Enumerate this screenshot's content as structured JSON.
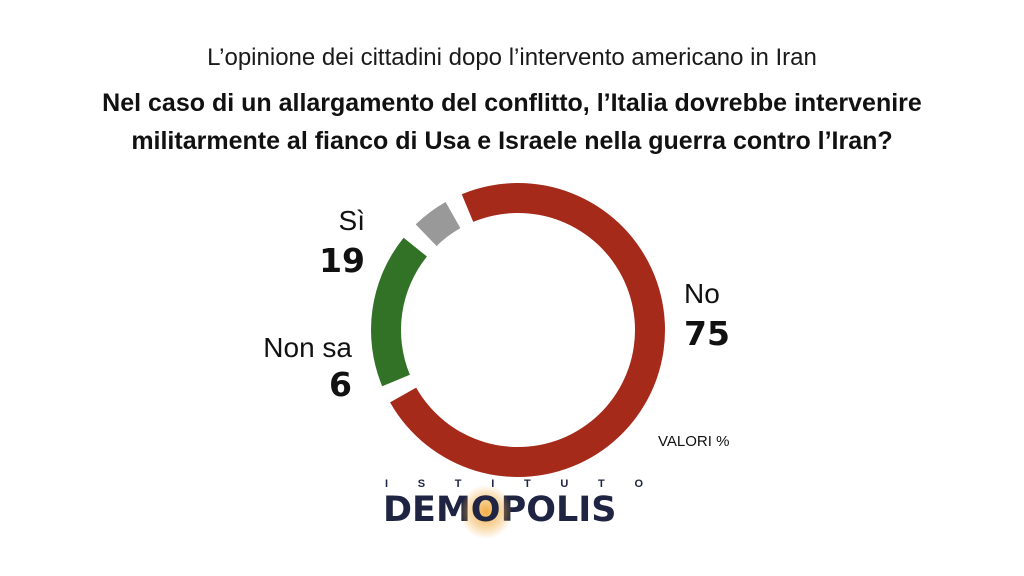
{
  "header": {
    "supertitle": "L’opinione dei cittadini dopo l’intervento americano in Iran",
    "title": "Nel caso di un allargamento del conflitto, l’Italia dovrebbe intervenire militarmente al fianco di Usa e Israele nella guerra contro l’Iran?"
  },
  "chart_data": {
    "type": "pie",
    "donut": true,
    "title": "Nel caso di un allargamento del conflitto, l’Italia dovrebbe intervenire militarmente al fianco di Usa e Israele nella guerra contro l’Iran?",
    "unit_note": "VALORI %",
    "slices": [
      {
        "label": "No",
        "value": 75,
        "display": "75",
        "color": "#a52a1a"
      },
      {
        "label": "Sì",
        "value": 19,
        "display": "19",
        "color": "#317227"
      },
      {
        "label": "Non sa",
        "value": 6,
        "display": "6",
        "color": "#999999"
      }
    ]
  },
  "logo": {
    "top_letters": [
      "I",
      "S",
      "T",
      "I",
      "T",
      "U",
      "T",
      "O"
    ],
    "name_before": "DEM",
    "name_o": "O",
    "name_after": "POLIS",
    "color": "#1e2442",
    "glow_color": "#f0a028"
  }
}
